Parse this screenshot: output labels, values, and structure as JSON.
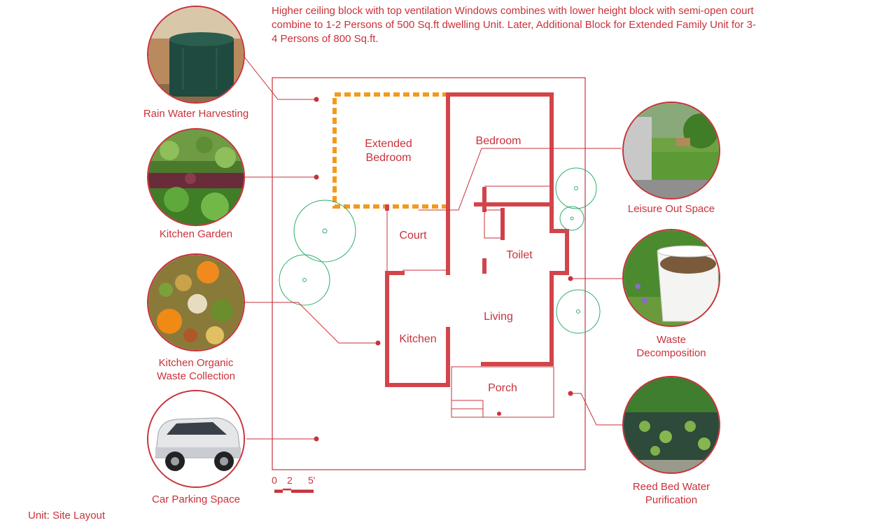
{
  "description": "Higher ceiling block with top ventilation Windows combines with lower height block with semi-open court combine to 1-2 Persons of 500 Sq.ft dwelling Unit. Later, Additional Block for Extended Family Unit for 3-4 Persons of 800 Sq.ft.",
  "features_left": [
    {
      "label": "Rain Water Harvesting",
      "icon": "water-tank-photo"
    },
    {
      "label": "Kitchen Garden",
      "icon": "garden-photo"
    },
    {
      "label_lines": [
        "Kitchen Organic",
        "Waste Collection"
      ],
      "icon": "organic-waste-photo"
    },
    {
      "label": "Car Parking Space",
      "icon": "car-photo"
    }
  ],
  "features_right": [
    {
      "label": "Leisure Out Space",
      "icon": "backyard-photo"
    },
    {
      "label_lines": [
        "Waste",
        "Decomposition"
      ],
      "icon": "compost-bin-photo"
    },
    {
      "label_lines": [
        "Reed Bed Water",
        "Purification"
      ],
      "icon": "pond-photo"
    }
  ],
  "rooms": {
    "extended_bedroom": [
      "Extended",
      "Bedroom"
    ],
    "bedroom": "Bedroom",
    "court": "Court",
    "toilet": "Toilet",
    "living": "Living",
    "kitchen": "Kitchen",
    "porch": "Porch"
  },
  "scale": {
    "marks": [
      "0",
      "2",
      "5'"
    ]
  },
  "footer": "Unit: Site Layout",
  "colors": {
    "wall": "#d2454a",
    "line": "#c8323a",
    "extension": "#f39a1e",
    "tree": "#2fae6a"
  }
}
